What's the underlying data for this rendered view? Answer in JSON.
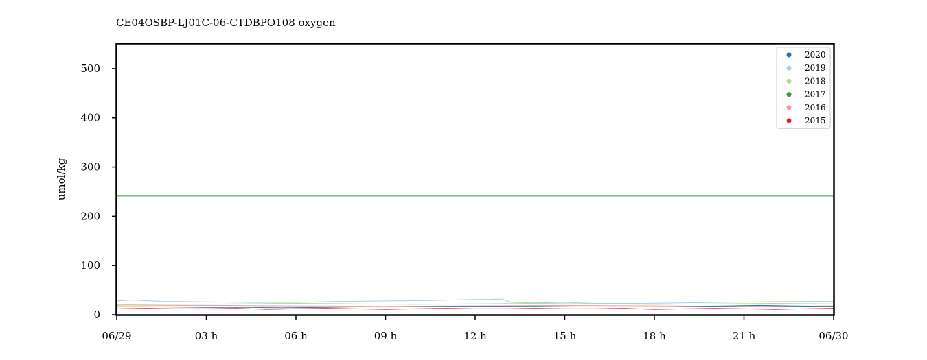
{
  "chart_data": {
    "type": "line",
    "title": "CE04OSBP-LJ01C-06-CTDBPO108 oxygen",
    "xlabel": "",
    "ylabel": "umol/kg",
    "ylim": [
      0,
      550
    ],
    "yticks": [
      0,
      100,
      200,
      300,
      400,
      500
    ],
    "xlim_hours": [
      0,
      24
    ],
    "xticks": [
      {
        "hour": 0,
        "label": "06/29"
      },
      {
        "hour": 3,
        "label": "03 h"
      },
      {
        "hour": 6,
        "label": "06 h"
      },
      {
        "hour": 9,
        "label": "09 h"
      },
      {
        "hour": 12,
        "label": "12 h"
      },
      {
        "hour": 15,
        "label": "15 h"
      },
      {
        "hour": 18,
        "label": "18 h"
      },
      {
        "hour": 21,
        "label": "21 h"
      },
      {
        "hour": 24,
        "label": "06/30"
      }
    ],
    "grid": false,
    "legend_position": "top-right",
    "series": [
      {
        "name": "2020",
        "color": "#1f78b4",
        "x": [
          0,
          1.5,
          3,
          4.5,
          5.5,
          7,
          8,
          9.5,
          11,
          12.5,
          14,
          15.5,
          17,
          18.5,
          19.5,
          20.5,
          21.5,
          22.5,
          23.5,
          24
        ],
        "y": [
          16,
          16,
          15,
          15,
          14,
          15,
          16,
          16,
          17,
          17,
          17,
          16,
          16,
          16,
          17,
          18,
          19,
          18,
          17,
          17
        ]
      },
      {
        "name": "2019",
        "color": "#a6cee3",
        "x": [
          0,
          0.5,
          1.5,
          3,
          4.5,
          6,
          7.5,
          9,
          10.5,
          12,
          12.5,
          12.9,
          13.2,
          14,
          15,
          16,
          17.5,
          19,
          20,
          21.5,
          23,
          24
        ],
        "y": [
          28,
          30,
          27,
          26,
          25,
          25,
          27,
          28,
          29,
          31,
          31,
          32,
          25,
          24,
          25,
          23,
          23,
          24,
          25,
          26,
          27,
          27
        ]
      },
      {
        "name": "2018",
        "color": "#b2df8a",
        "x": [
          0,
          2,
          4,
          6,
          8,
          10,
          12,
          14,
          16,
          18,
          20,
          22,
          24
        ],
        "y": [
          20,
          21,
          22,
          23,
          22,
          21,
          22,
          23,
          22,
          21,
          22,
          23,
          22
        ]
      },
      {
        "name": "2017",
        "color": "#33a02c",
        "x": [
          0,
          24
        ],
        "y": [
          241,
          241
        ]
      },
      {
        "name": "2016",
        "color": "#fb9a99",
        "x": [
          0,
          3,
          6,
          9,
          12,
          15,
          18,
          21,
          24
        ],
        "y": [
          18,
          19,
          18,
          17,
          18,
          19,
          18,
          17,
          18
        ]
      },
      {
        "name": "2015",
        "color": "#e31a1c",
        "x": [
          0,
          1,
          2,
          3,
          4,
          5,
          6,
          7,
          8,
          9,
          10,
          11,
          12,
          13,
          14,
          15,
          16,
          17,
          18,
          19,
          20,
          21,
          22,
          23,
          24
        ],
        "y": [
          12,
          13,
          12,
          12,
          13,
          11,
          12,
          13,
          12,
          11,
          12,
          13,
          12,
          12,
          13,
          12,
          12,
          13,
          11,
          12,
          13,
          12,
          11,
          12,
          13
        ]
      }
    ]
  }
}
